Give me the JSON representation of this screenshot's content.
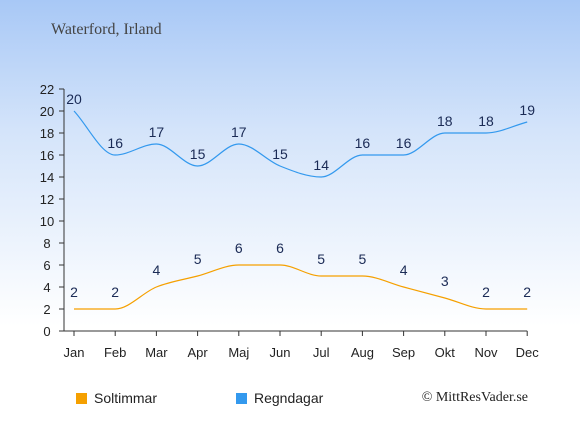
{
  "header": {
    "title": "Waterford, Irland"
  },
  "legend": {
    "sun_label": "Soltimmar",
    "rain_label": "Regndagar"
  },
  "credit": "© MittResVader.se",
  "colors": {
    "sun": "#f5a000",
    "rain": "#3399ee",
    "axis": "#333333",
    "value_text": "#1a2a55"
  },
  "chart_data": {
    "type": "line",
    "categories": [
      "Jan",
      "Feb",
      "Mar",
      "Apr",
      "Maj",
      "Jun",
      "Jul",
      "Aug",
      "Sep",
      "Okt",
      "Nov",
      "Dec"
    ],
    "series": [
      {
        "name": "Soltimmar",
        "values": [
          2,
          2,
          4,
          5,
          6,
          6,
          5,
          5,
          4,
          3,
          2,
          2
        ]
      },
      {
        "name": "Regndagar",
        "values": [
          20,
          16,
          17,
          15,
          17,
          15,
          14,
          16,
          16,
          18,
          18,
          19
        ]
      }
    ],
    "yticks": [
      0,
      2,
      4,
      6,
      8,
      10,
      12,
      14,
      16,
      18,
      20,
      22
    ],
    "ylim": [
      0,
      22
    ],
    "grid": false,
    "legend_position": "bottom-left"
  }
}
